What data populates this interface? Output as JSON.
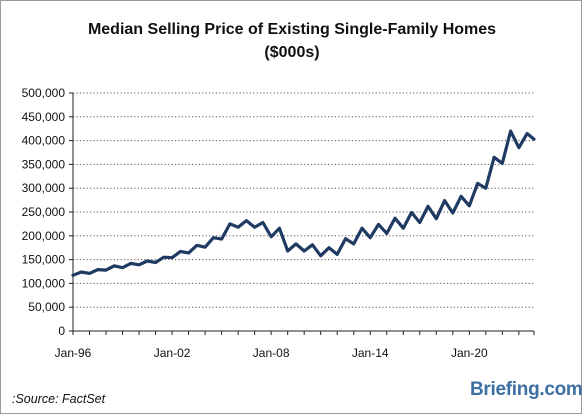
{
  "chart_data": {
    "type": "line",
    "title": "Median Selling Price of Existing Single-Family Homes",
    "subtitle": "($000s)",
    "xlabel": "",
    "ylabel": "",
    "ylim": [
      0,
      500000
    ],
    "y_ticks": [
      "0",
      "50,000",
      "100,000",
      "150,000",
      "200,000",
      "250,000",
      "300,000",
      "350,000",
      "400,000",
      "450,000",
      "500,000"
    ],
    "x_ticks": [
      "Jan-96",
      "Jan-02",
      "Jan-08",
      "Jan-14",
      "Jan-20"
    ],
    "x_range": [
      "1996-01",
      "2023-12"
    ],
    "grid": "horizontal dotted",
    "legend": "none",
    "color": "#1f3a63",
    "series": [
      {
        "x": [
          "1996-01",
          "1996-07",
          "1997-01",
          "1997-07",
          "1998-01",
          "1998-07",
          "1999-01",
          "1999-07",
          "2000-01",
          "2000-07",
          "2001-01",
          "2001-07",
          "2002-01",
          "2002-07",
          "2003-01",
          "2003-07",
          "2004-01",
          "2004-07",
          "2005-01",
          "2005-07",
          "2006-01",
          "2006-07",
          "2007-01",
          "2007-07",
          "2008-01",
          "2008-07",
          "2009-01",
          "2009-07",
          "2010-01",
          "2010-07",
          "2011-01",
          "2011-07",
          "2012-01",
          "2012-07",
          "2013-01",
          "2013-07",
          "2014-01",
          "2014-07",
          "2015-01",
          "2015-07",
          "2016-01",
          "2016-07",
          "2017-01",
          "2017-07",
          "2018-01",
          "2018-07",
          "2019-01",
          "2019-07",
          "2020-01",
          "2020-07",
          "2021-01",
          "2021-07",
          "2022-01",
          "2022-07",
          "2023-01",
          "2023-07",
          "2023-12"
        ],
        "values": [
          117000,
          124000,
          121000,
          129000,
          128000,
          137000,
          133000,
          142000,
          139000,
          147000,
          144000,
          155000,
          154000,
          167000,
          164000,
          180000,
          176000,
          196000,
          193000,
          225000,
          218000,
          232000,
          218000,
          228000,
          198000,
          216000,
          168000,
          183000,
          168000,
          181000,
          158000,
          175000,
          161000,
          194000,
          183000,
          216000,
          196000,
          224000,
          205000,
          237000,
          216000,
          249000,
          228000,
          262000,
          236000,
          274000,
          248000,
          283000,
          263000,
          310000,
          300000,
          365000,
          352000,
          420000,
          385000,
          415000,
          403000
        ]
      }
    ]
  },
  "footer": {
    "source": ":Source: FactSet",
    "brand": "Briefing.com"
  }
}
